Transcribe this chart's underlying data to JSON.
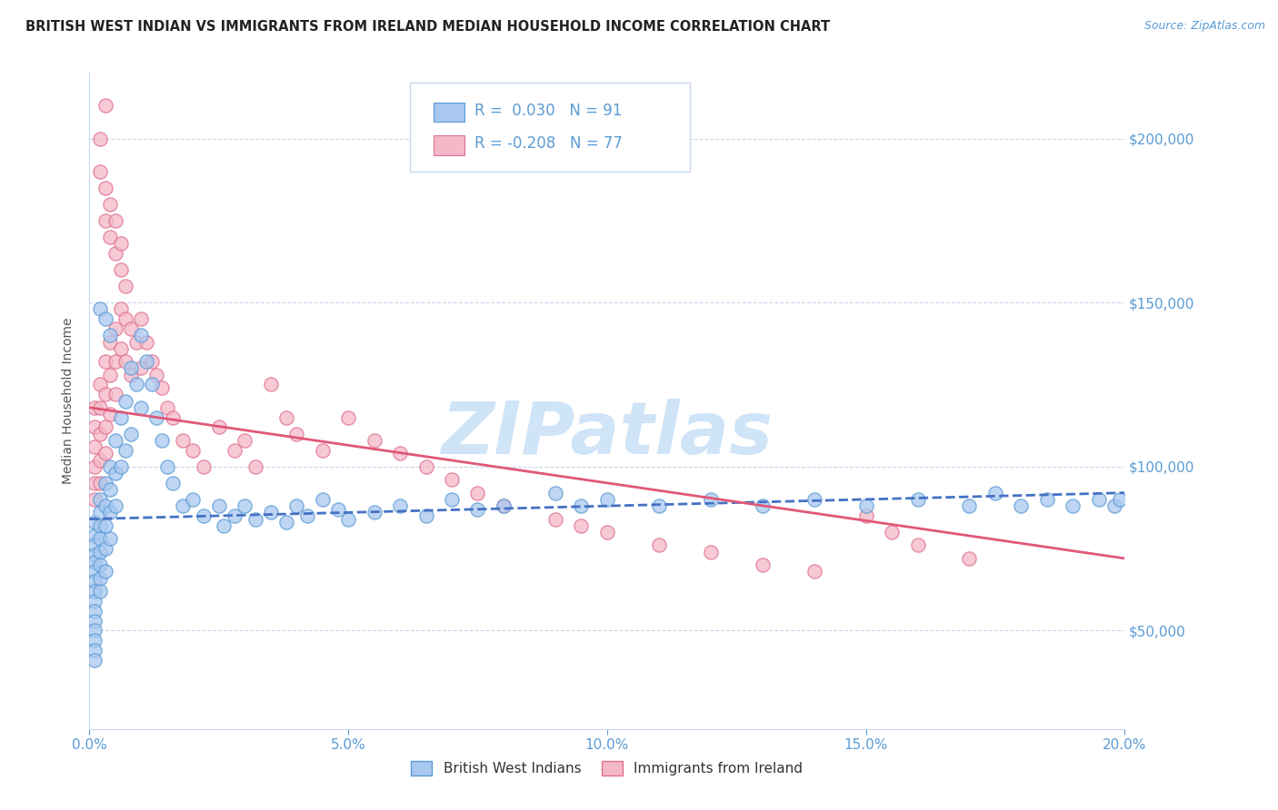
{
  "title": "BRITISH WEST INDIAN VS IMMIGRANTS FROM IRELAND MEDIAN HOUSEHOLD INCOME CORRELATION CHART",
  "source": "Source: ZipAtlas.com",
  "ylabel": "Median Household Income",
  "xlim": [
    0.0,
    0.2
  ],
  "ylim": [
    20000,
    220000
  ],
  "yticks": [
    50000,
    100000,
    150000,
    200000
  ],
  "ytick_labels": [
    "$50,000",
    "$100,000",
    "$150,000",
    "$200,000"
  ],
  "xticks": [
    0.0,
    0.05,
    0.1,
    0.15,
    0.2
  ],
  "xtick_labels": [
    "0.0%",
    "5.0%",
    "10.0%",
    "15.0%",
    "20.0%"
  ],
  "blue_fill": "#A8C8F0",
  "pink_fill": "#F4B8C8",
  "blue_edge": "#5B9BD5",
  "pink_edge": "#E07090",
  "blue_line": "#4472C4",
  "pink_line": "#E05878",
  "axis_label_color": "#5B9BD5",
  "grid_color": "#C8D8EC",
  "watermark_color": "#D0E4F8",
  "R_blue": 0.03,
  "N_blue": 91,
  "R_pink": -0.208,
  "N_pink": 77,
  "legend_label_blue": "British West Indians",
  "legend_label_pink": "Immigrants from Ireland",
  "blue_trend_x": [
    0.0,
    0.2
  ],
  "blue_trend_y": [
    84000,
    92000
  ],
  "pink_trend_x": [
    0.0,
    0.2
  ],
  "pink_trend_y": [
    118000,
    72000
  ],
  "blue_points_x": [
    0.001,
    0.001,
    0.001,
    0.001,
    0.001,
    0.001,
    0.001,
    0.001,
    0.001,
    0.001,
    0.001,
    0.001,
    0.001,
    0.001,
    0.001,
    0.002,
    0.002,
    0.002,
    0.002,
    0.002,
    0.002,
    0.002,
    0.002,
    0.003,
    0.003,
    0.003,
    0.003,
    0.003,
    0.004,
    0.004,
    0.004,
    0.004,
    0.005,
    0.005,
    0.005,
    0.006,
    0.006,
    0.007,
    0.007,
    0.008,
    0.008,
    0.009,
    0.01,
    0.01,
    0.011,
    0.012,
    0.013,
    0.014,
    0.015,
    0.016,
    0.018,
    0.02,
    0.022,
    0.025,
    0.026,
    0.028,
    0.03,
    0.032,
    0.035,
    0.038,
    0.04,
    0.042,
    0.045,
    0.048,
    0.05,
    0.055,
    0.06,
    0.065,
    0.07,
    0.075,
    0.08,
    0.09,
    0.095,
    0.1,
    0.11,
    0.12,
    0.13,
    0.14,
    0.15,
    0.16,
    0.17,
    0.175,
    0.18,
    0.185,
    0.19,
    0.195,
    0.198,
    0.199,
    0.002,
    0.003,
    0.004
  ],
  "blue_points_y": [
    83000,
    79000,
    76000,
    73000,
    71000,
    68000,
    65000,
    62000,
    59000,
    56000,
    53000,
    50000,
    47000,
    44000,
    41000,
    90000,
    86000,
    82000,
    78000,
    74000,
    70000,
    66000,
    62000,
    95000,
    88000,
    82000,
    75000,
    68000,
    100000,
    93000,
    86000,
    78000,
    108000,
    98000,
    88000,
    115000,
    100000,
    120000,
    105000,
    130000,
    110000,
    125000,
    140000,
    118000,
    132000,
    125000,
    115000,
    108000,
    100000,
    95000,
    88000,
    90000,
    85000,
    88000,
    82000,
    85000,
    88000,
    84000,
    86000,
    83000,
    88000,
    85000,
    90000,
    87000,
    84000,
    86000,
    88000,
    85000,
    90000,
    87000,
    88000,
    92000,
    88000,
    90000,
    88000,
    90000,
    88000,
    90000,
    88000,
    90000,
    88000,
    92000,
    88000,
    90000,
    88000,
    90000,
    88000,
    90000,
    148000,
    145000,
    140000
  ],
  "pink_points_x": [
    0.001,
    0.001,
    0.001,
    0.001,
    0.001,
    0.001,
    0.002,
    0.002,
    0.002,
    0.002,
    0.002,
    0.003,
    0.003,
    0.003,
    0.003,
    0.004,
    0.004,
    0.004,
    0.005,
    0.005,
    0.005,
    0.006,
    0.006,
    0.007,
    0.007,
    0.008,
    0.008,
    0.009,
    0.01,
    0.01,
    0.011,
    0.012,
    0.013,
    0.014,
    0.015,
    0.016,
    0.018,
    0.02,
    0.022,
    0.025,
    0.028,
    0.03,
    0.032,
    0.035,
    0.038,
    0.04,
    0.045,
    0.05,
    0.055,
    0.06,
    0.065,
    0.07,
    0.075,
    0.08,
    0.09,
    0.095,
    0.1,
    0.11,
    0.12,
    0.13,
    0.14,
    0.15,
    0.155,
    0.16,
    0.17,
    0.003,
    0.004,
    0.005,
    0.006,
    0.007,
    0.002,
    0.003,
    0.004,
    0.003,
    0.005,
    0.006,
    0.002
  ],
  "pink_points_y": [
    118000,
    112000,
    106000,
    100000,
    95000,
    90000,
    125000,
    118000,
    110000,
    102000,
    95000,
    132000,
    122000,
    112000,
    104000,
    138000,
    128000,
    116000,
    142000,
    132000,
    122000,
    148000,
    136000,
    145000,
    132000,
    142000,
    128000,
    138000,
    145000,
    130000,
    138000,
    132000,
    128000,
    124000,
    118000,
    115000,
    108000,
    105000,
    100000,
    112000,
    105000,
    108000,
    100000,
    125000,
    115000,
    110000,
    105000,
    115000,
    108000,
    104000,
    100000,
    96000,
    92000,
    88000,
    84000,
    82000,
    80000,
    76000,
    74000,
    70000,
    68000,
    85000,
    80000,
    76000,
    72000,
    175000,
    170000,
    165000,
    160000,
    155000,
    190000,
    185000,
    180000,
    210000,
    175000,
    168000,
    200000
  ]
}
